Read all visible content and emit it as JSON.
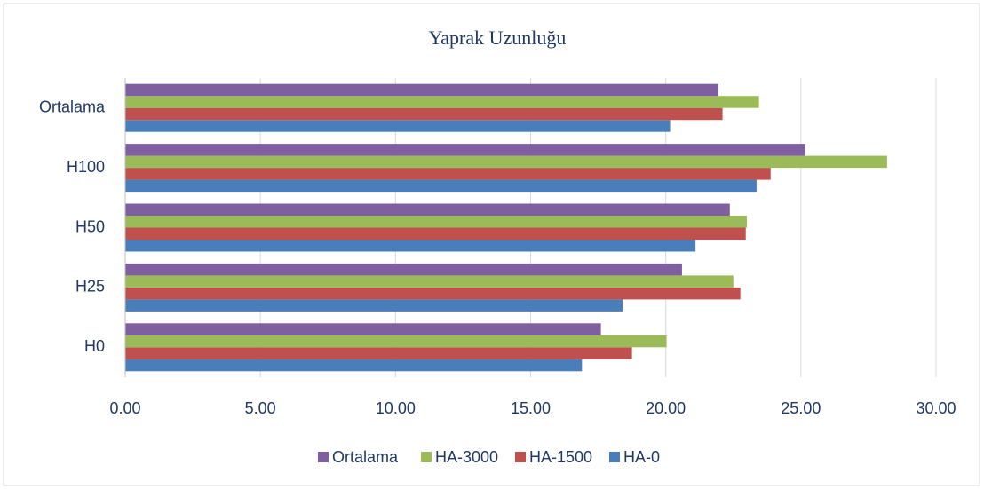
{
  "chart_data": {
    "type": "bar",
    "orientation": "horizontal",
    "title": "Yaprak Uzunluğu",
    "categories": [
      "H0",
      "H25",
      "H50",
      "H100",
      "Ortalama"
    ],
    "series": [
      {
        "name": "HA-0",
        "color": "#4a7ebb",
        "values": [
          16.9,
          18.4,
          21.1,
          23.36,
          20.16
        ]
      },
      {
        "name": "HA-1500",
        "color": "#c0504d",
        "values": [
          18.75,
          22.76,
          22.96,
          23.88,
          22.1
        ]
      },
      {
        "name": "HA-3000",
        "color": "#9bbb59",
        "values": [
          20.03,
          22.5,
          23.0,
          28.19,
          23.45
        ]
      },
      {
        "name": "Ortalama",
        "color": "#7f5fa0",
        "values": [
          17.6,
          20.6,
          22.37,
          25.16,
          21.94
        ]
      }
    ],
    "xlim": [
      0,
      30
    ],
    "xticks": [
      {
        "value": 0,
        "label": "0.00"
      },
      {
        "value": 5,
        "label": "5.00"
      },
      {
        "value": 10,
        "label": "10.00"
      },
      {
        "value": 15,
        "label": "15.00"
      },
      {
        "value": 20,
        "label": "20.00"
      },
      {
        "value": 25,
        "label": "25.00"
      },
      {
        "value": 30,
        "label": "30.00"
      }
    ],
    "grid": true,
    "legend": "bottom"
  }
}
